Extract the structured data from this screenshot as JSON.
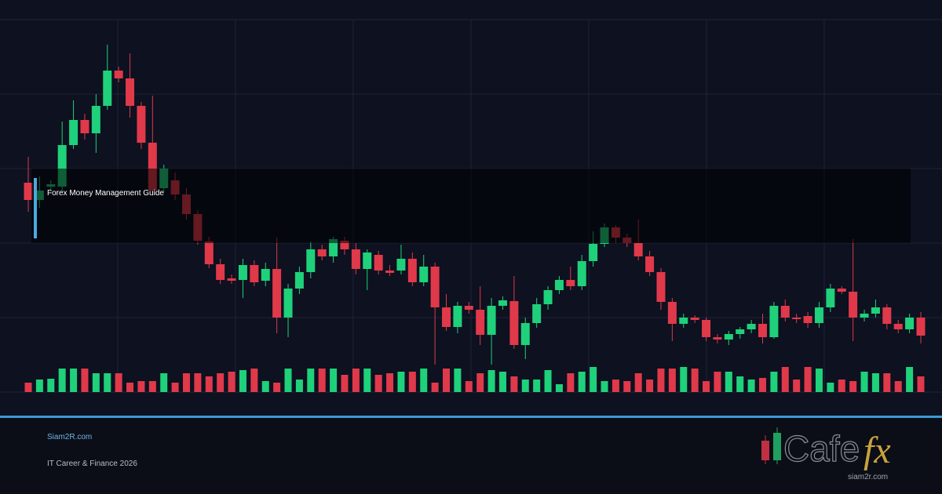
{
  "chart_data": {
    "type": "candlestick",
    "open": [
      297,
      275,
      292,
      292,
      345,
      377,
      360,
      395,
      440,
      430,
      395,
      348,
      290,
      300,
      282,
      257,
      222,
      193,
      175,
      173,
      192,
      172,
      187,
      125,
      162,
      183,
      212,
      203,
      223,
      212,
      187,
      205,
      185,
      185,
      200,
      170,
      190,
      138,
      113,
      140,
      135,
      103,
      140,
      146,
      90,
      118,
      142,
      160,
      173,
      165,
      197,
      219,
      240,
      227,
      220,
      203,
      183,
      145,
      117,
      125,
      122,
      100,
      97,
      104,
      110,
      117,
      100,
      140,
      125,
      127,
      118,
      138,
      162,
      158,
      125,
      130,
      138,
      117,
      110,
      125
    ],
    "high": [
      330,
      305,
      300,
      375,
      402,
      385,
      410,
      473,
      445,
      462,
      400,
      408,
      320,
      310,
      290,
      262,
      228,
      200,
      180,
      200,
      198,
      195,
      227,
      168,
      190,
      222,
      218,
      228,
      228,
      220,
      212,
      210,
      192,
      218,
      208,
      205,
      195,
      155,
      145,
      145,
      165,
      150,
      152,
      178,
      125,
      150,
      165,
      178,
      190,
      205,
      235,
      245,
      243,
      232,
      250,
      210,
      188,
      150,
      130,
      128,
      125,
      104,
      108,
      113,
      122,
      130,
      145,
      148,
      130,
      132,
      145,
      168,
      165,
      225,
      135,
      148,
      142,
      122,
      130,
      132
    ],
    "low": [
      260,
      265,
      285,
      285,
      340,
      352,
      335,
      390,
      425,
      380,
      340,
      280,
      285,
      275,
      250,
      218,
      188,
      168,
      168,
      150,
      165,
      165,
      105,
      100,
      155,
      175,
      198,
      195,
      205,
      180,
      160,
      180,
      178,
      180,
      165,
      165,
      65,
      108,
      105,
      130,
      90,
      65,
      135,
      85,
      72,
      112,
      135,
      155,
      160,
      160,
      190,
      215,
      220,
      215,
      198,
      178,
      135,
      95,
      112,
      118,
      95,
      92,
      90,
      98,
      105,
      92,
      98,
      120,
      118,
      112,
      112,
      132,
      155,
      95,
      120,
      125,
      110,
      105,
      105,
      92
    ],
    "close": [
      275,
      287,
      295,
      345,
      377,
      360,
      395,
      440,
      430,
      395,
      348,
      287,
      315,
      282,
      257,
      223,
      193,
      173,
      172,
      192,
      170,
      187,
      125,
      162,
      183,
      212,
      203,
      225,
      212,
      187,
      208,
      185,
      182,
      200,
      170,
      190,
      138,
      113,
      140,
      135,
      103,
      140,
      147,
      90,
      118,
      142,
      160,
      173,
      165,
      197,
      219,
      240,
      227,
      220,
      203,
      183,
      145,
      117,
      125,
      122,
      100,
      97,
      104,
      110,
      117,
      100,
      140,
      125,
      123,
      118,
      138,
      162,
      158,
      125,
      130,
      138,
      117,
      110,
      125,
      102
    ],
    "volume": [
      12,
      16,
      17,
      30,
      30,
      30,
      24,
      24,
      24,
      12,
      14,
      14,
      24,
      12,
      24,
      24,
      20,
      24,
      26,
      28,
      30,
      14,
      12,
      30,
      16,
      30,
      30,
      30,
      22,
      30,
      30,
      22,
      24,
      26,
      26,
      30,
      12,
      30,
      30,
      14,
      24,
      28,
      26,
      20,
      16,
      16,
      28,
      10,
      24,
      26,
      32,
      14,
      16,
      14,
      24,
      16,
      30,
      30,
      32,
      30,
      14,
      26,
      26,
      20,
      16,
      18,
      26,
      32,
      16,
      32,
      30,
      12,
      16,
      14,
      26,
      24,
      24,
      14,
      32,
      20
    ],
    "ylim": [
      0,
      530
    ],
    "volume_ylim": [
      0,
      100
    ],
    "up_color": "#1fd17a",
    "down_color": "#e0394a"
  },
  "overlay": {
    "title": "Forex Money Management Guide"
  },
  "footer": {
    "site": "Siam2R.com",
    "tagline": "IT Career & Finance 2026"
  },
  "logo": {
    "text": "Cafe",
    "accent": "fx",
    "url": "siam2r.com"
  }
}
